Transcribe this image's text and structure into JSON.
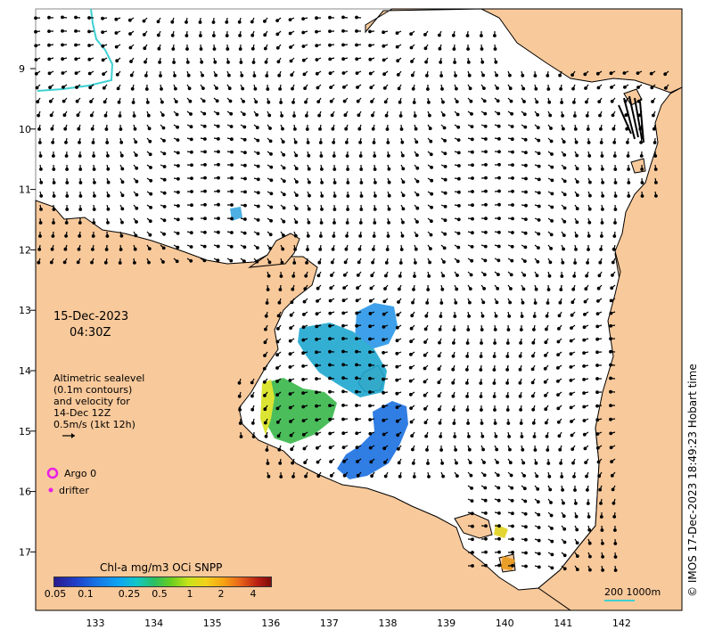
{
  "map": {
    "date": "15-Dec-2023",
    "time": "04:30Z",
    "info_lines": [
      "Altimetric sealevel",
      "(0.1m contours)",
      "and velocity for",
      "14-Dec 12Z",
      "0.5m/s (1kt 12h)"
    ],
    "argo_label": "Argo 0",
    "drifter_label": "drifter",
    "colorbar_title": "Chl-a mg/m3 OCi SNPP",
    "colorbar_ticks": [
      "0.05",
      "0.1",
      "0.25",
      "0.5",
      "1",
      "2",
      "4"
    ],
    "scale_label": "200  1000m",
    "credit": "© IMOS 17-Dec-2023 18:49:23 Hobart time",
    "lat_labels": [
      "9",
      "10",
      "11",
      "12",
      "13",
      "14",
      "15",
      "16",
      "17"
    ],
    "lon_labels": [
      "133",
      "134",
      "135",
      "136",
      "137",
      "138",
      "139",
      "140",
      "141",
      "142"
    ],
    "colors": {
      "land": "#f8c99b",
      "ocean": "#ffffff",
      "coast": "#000000",
      "argo": "#e81ee8",
      "shelf_contour": "#3fd0d0"
    }
  }
}
